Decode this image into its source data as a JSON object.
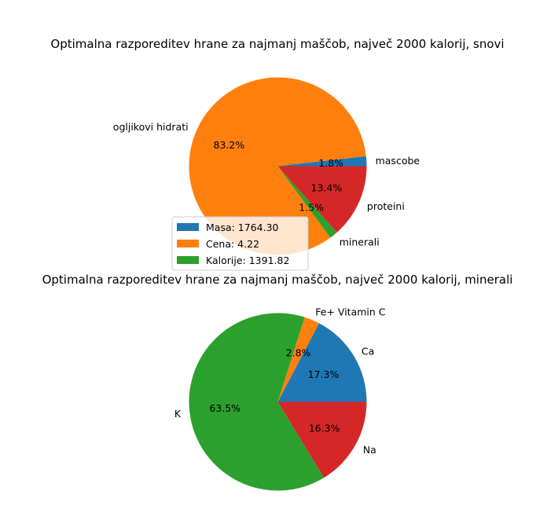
{
  "chart_data": [
    {
      "type": "pie",
      "title": "Optimalna razporeditev hrane za najmanj maščob, največ 2000 kalorij, snovi",
      "slices": [
        {
          "label": "mascobe",
          "value": 1.8,
          "pct_label": "1.8%",
          "color": "#1f77b4"
        },
        {
          "label": "ogljikovi hidrati",
          "value": 83.2,
          "pct_label": "83.2%",
          "color": "#ff7f0e"
        },
        {
          "label": "minerali",
          "value": 1.5,
          "pct_label": "1.5%",
          "color": "#2ca02c"
        },
        {
          "label": "proteini",
          "value": 13.4,
          "pct_label": "13.4%",
          "color": "#d62728"
        }
      ],
      "legend": {
        "placement": "bottom-left",
        "entries": [
          {
            "text": "Masa: 1764.30",
            "color": "#1f77b4"
          },
          {
            "text": "Cena: 4.22",
            "color": "#ff7f0e"
          },
          {
            "text": "Kalorije: 1391.82",
            "color": "#2ca02c"
          }
        ]
      }
    },
    {
      "type": "pie",
      "title": "Optimalna razporeditev hrane za najmanj maščob, največ 2000 kalorij, minerali",
      "slices": [
        {
          "label": "Ca",
          "value": 17.3,
          "pct_label": "17.3%",
          "color": "#1f77b4"
        },
        {
          "label": "Fe+ Vitamin C",
          "value": 2.8,
          "pct_label": "2.8%",
          "color": "#ff7f0e"
        },
        {
          "label": "K",
          "value": 63.5,
          "pct_label": "63.5%",
          "color": "#2ca02c"
        },
        {
          "label": "Na",
          "value": 16.3,
          "pct_label": "16.3%",
          "color": "#d62728"
        }
      ]
    }
  ]
}
